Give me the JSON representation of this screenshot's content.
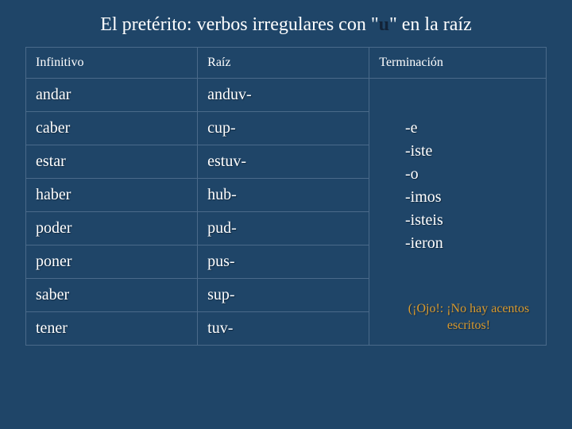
{
  "title_pre": "El pretérito: verbos irregulares con ",
  "title_quote_open": "\"",
  "title_u": "u",
  "title_quote_close": "\" en la raíz",
  "headers": {
    "c1": "Infinitivo",
    "c2": "Raíz",
    "c3": "Terminación"
  },
  "rows": [
    {
      "inf": "andar",
      "raiz": "anduv-"
    },
    {
      "inf": "caber",
      "raiz": "cup-"
    },
    {
      "inf": "estar",
      "raiz": "estuv-"
    },
    {
      "inf": "haber",
      "raiz": "hub-"
    },
    {
      "inf": "poder",
      "raiz": "pud-"
    },
    {
      "inf": "poner",
      "raiz": "pus-"
    },
    {
      "inf": "saber",
      "raiz": "sup-"
    },
    {
      "inf": "tener",
      "raiz": "tuv-"
    }
  ],
  "endings": [
    "-e",
    "-iste",
    "-o",
    "-imos",
    "-isteis",
    "-ieron"
  ],
  "ojo": "(¡Ojo!: ¡No hay acentos escritos!",
  "colors": {
    "background": "#1f4568",
    "text": "#ffffff",
    "u_color": "#122338",
    "border": "#4a6a8a",
    "ojo": "#d99a2e"
  }
}
